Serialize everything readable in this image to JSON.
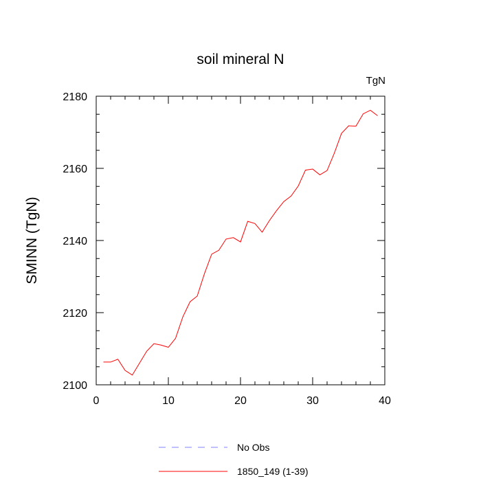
{
  "chart_data": {
    "type": "line",
    "title": "soil mineral N",
    "units": "TgN",
    "ylabel": "SMINN  (TgN)",
    "xlabel": "",
    "xlim": [
      0,
      40
    ],
    "ylim": [
      2100,
      2180
    ],
    "xticks": [
      0,
      10,
      20,
      30,
      40
    ],
    "yticks": [
      2100,
      2120,
      2140,
      2160,
      2180
    ],
    "grid": false,
    "legend_placement": "bottom",
    "series": [
      {
        "name": "1850_149 (1-39)",
        "color": "#ff0000",
        "style": "solid",
        "x": [
          1,
          2,
          3,
          4,
          5,
          6,
          7,
          8,
          9,
          10,
          11,
          12,
          13,
          14,
          15,
          16,
          17,
          18,
          19,
          20,
          21,
          22,
          23,
          24,
          25,
          26,
          27,
          28,
          29,
          30,
          31,
          32,
          33,
          34,
          35,
          36,
          37,
          38,
          39
        ],
        "values": [
          2106.3,
          2106.3,
          2107.1,
          2104.0,
          2102.7,
          2106.0,
          2109.3,
          2111.4,
          2111.0,
          2110.4,
          2112.9,
          2118.8,
          2123.0,
          2124.6,
          2130.8,
          2136.2,
          2137.3,
          2140.4,
          2140.8,
          2139.6,
          2145.3,
          2144.7,
          2142.3,
          2145.5,
          2148.3,
          2150.8,
          2152.3,
          2155.1,
          2159.5,
          2159.8,
          2158.2,
          2159.4,
          2164.2,
          2169.7,
          2171.8,
          2171.7,
          2175.1,
          2176.1,
          2174.6
        ]
      }
    ],
    "legend": [
      {
        "label": "No Obs",
        "color": "#8080ff",
        "style": "dashed"
      },
      {
        "label": "1850_149 (1-39)",
        "color": "#ff0000",
        "style": "solid"
      }
    ]
  }
}
